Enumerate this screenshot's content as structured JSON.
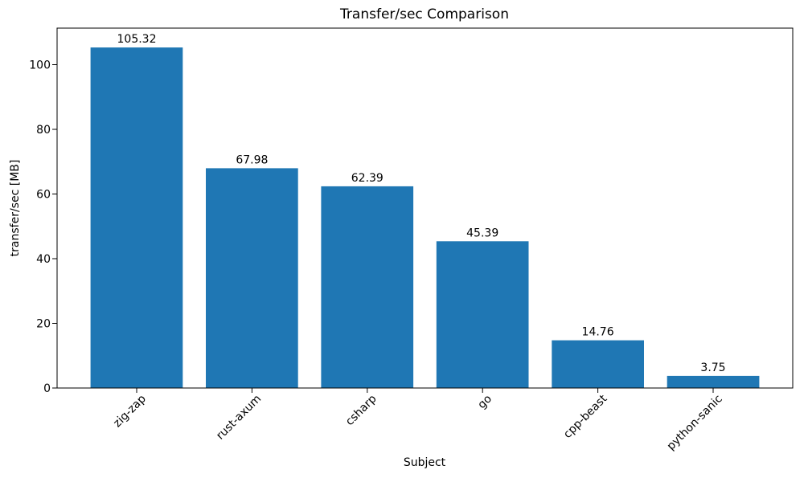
{
  "figure": {
    "background": "#ffffff",
    "text_color": "#000000",
    "spine_color": "#000000"
  },
  "chart_data": {
    "type": "bar",
    "title": "Transfer/sec Comparison",
    "xlabel": "Subject",
    "ylabel": "transfer/sec [MB]",
    "categories": [
      "zig-zap",
      "rust-axum",
      "csharp",
      "go",
      "cpp-beast",
      "python-sanic"
    ],
    "values": [
      105.32,
      67.98,
      62.39,
      45.39,
      14.76,
      3.75
    ],
    "bar_labels": [
      "105.32",
      "67.98",
      "62.39",
      "45.39",
      "14.76",
      "3.75"
    ],
    "bar_color": "#1f77b4",
    "yticks": [
      0,
      20,
      40,
      60,
      80,
      100
    ],
    "ytick_labels": [
      "0",
      "20",
      "40",
      "60",
      "80",
      "100"
    ],
    "ylim": [
      0,
      111.3
    ],
    "xtick_rotation_deg": 45,
    "grid": false,
    "legend": null
  }
}
